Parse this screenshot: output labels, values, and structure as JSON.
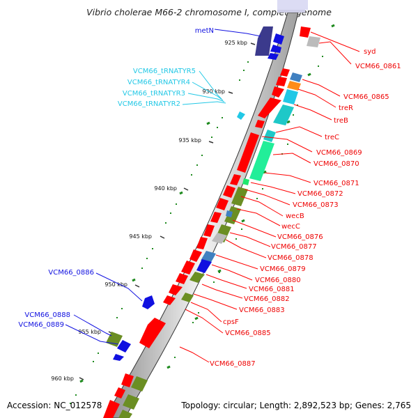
{
  "title": "Vibrio cholerae M66-2 chromosome I, complete genome",
  "accession": "Accession: NC_012578",
  "topology": "Topology: circular; Length: 2,892,523 bp; Genes: 2,765",
  "ticks": [
    "925 kbp",
    "930 kbp",
    "935 kbp",
    "940 kbp",
    "945 kbp",
    "950 kbp",
    "955 kbp",
    "960 kbp"
  ],
  "genes_right": [
    "syd",
    "VCM66_0861",
    "VCM66_0865",
    "treR",
    "treB",
    "treC",
    "VCM66_0869",
    "VCM66_0870",
    "VCM66_0871",
    "VCM66_0872",
    "VCM66_0873",
    "wecB",
    "wecC",
    "VCM66_0876",
    "VCM66_0877",
    "VCM66_0878",
    "VCM66_0879",
    "VCM66_0880",
    "VCM66_0881",
    "VCM66_0882",
    "VCM66_0883",
    "cpsF",
    "VCM66_0885",
    "VCM66_0887"
  ],
  "genes_left_blue": [
    "metN",
    "VCM66_0886",
    "VCM66_0888",
    "VCM66_0889"
  ],
  "genes_left_cyan": [
    "VCM66_tRNATYR5",
    "VCM66_tRNATYR4",
    "VCM66_tRNATYR3",
    "VCM66_tRNATYR2"
  ],
  "colors": {
    "red": "#ff0000",
    "blue": "#1010e0",
    "cyan": "#22c8e6",
    "green": "#1e8a1e",
    "olive": "#6b8e23",
    "navy": "#3b3a8c",
    "spring": "#22ee99",
    "gray": "#bbbbbb"
  }
}
